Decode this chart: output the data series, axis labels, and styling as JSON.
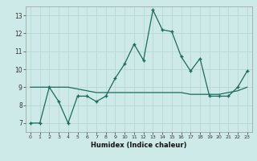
{
  "xlabel": "Humidex (Indice chaleur)",
  "x_values": [
    0,
    1,
    2,
    3,
    4,
    5,
    6,
    7,
    8,
    9,
    10,
    11,
    12,
    13,
    14,
    15,
    16,
    17,
    18,
    19,
    20,
    21,
    22,
    23
  ],
  "y_zigzag": [
    7.0,
    7.0,
    9.0,
    8.2,
    7.0,
    8.5,
    8.5,
    8.2,
    8.5,
    9.5,
    10.3,
    11.4,
    10.5,
    13.3,
    12.2,
    12.1,
    10.7,
    9.9,
    10.6,
    8.5,
    8.5,
    8.5,
    9.0,
    9.9
  ],
  "y_trend": [
    9.0,
    9.0,
    9.0,
    9.0,
    9.0,
    8.9,
    8.8,
    8.7,
    8.7,
    8.7,
    8.7,
    8.7,
    8.7,
    8.7,
    8.7,
    8.7,
    8.7,
    8.6,
    8.6,
    8.6,
    8.6,
    8.7,
    8.8,
    9.0
  ],
  "line_color": "#1a6b5e",
  "background_color": "#ceeae8",
  "grid_color": "#b8d8d4",
  "ylim": [
    6.5,
    13.5
  ],
  "xlim": [
    -0.5,
    23.5
  ],
  "yticks": [
    7,
    8,
    9,
    10,
    11,
    12,
    13
  ],
  "xticks": [
    0,
    1,
    2,
    3,
    4,
    5,
    6,
    7,
    8,
    9,
    10,
    11,
    12,
    13,
    14,
    15,
    16,
    17,
    18,
    19,
    20,
    21,
    22,
    23
  ]
}
